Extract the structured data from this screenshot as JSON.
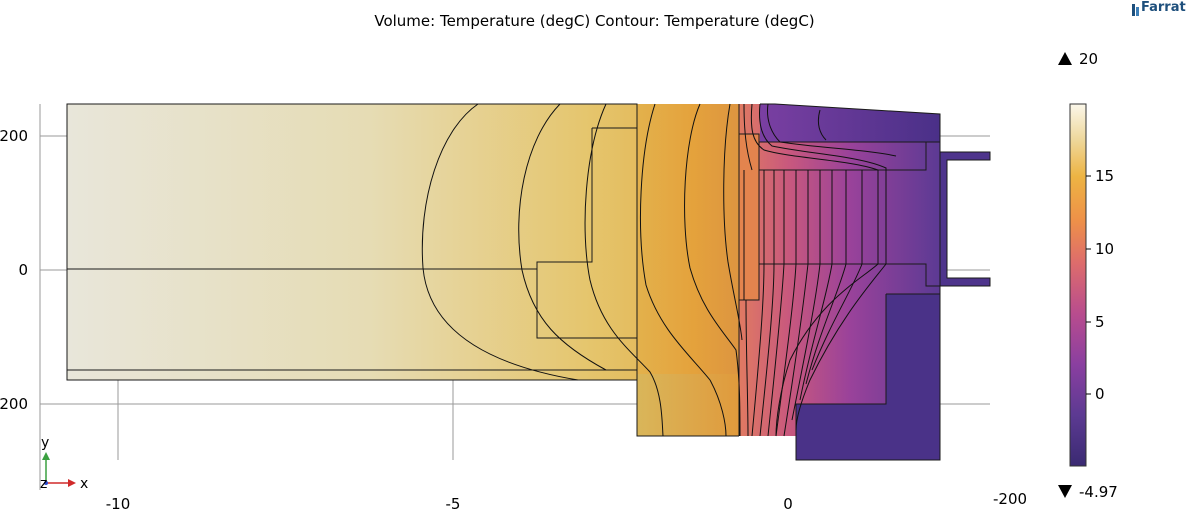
{
  "title": "Volume: Temperature (degC)  Contour: Temperature (degC)",
  "logo": {
    "text": "Farrat"
  },
  "y_ticks": [
    "200",
    "0",
    "200"
  ],
  "x_ticks": [
    "-10",
    "-5",
    "0"
  ],
  "x_tick_values": [
    -10,
    -5,
    0
  ],
  "x_axis_extra_label": "-200",
  "axis_triad": {
    "y": "y",
    "z": "z",
    "x": "x"
  },
  "colorbar": {
    "max_label": "20",
    "min_label": "-4.97",
    "max_value": 20,
    "min_value": -4.97,
    "ticks": [
      "15",
      "10",
      "5",
      "0"
    ],
    "tick_values": [
      15,
      10,
      5,
      0
    ],
    "colormap": [
      "#3a2a72",
      "#5c3a92",
      "#8a3fa0",
      "#b84c8e",
      "#dd6c6c",
      "#ee9148",
      "#edb443",
      "#eed79a",
      "#fbf7ea"
    ]
  }
}
